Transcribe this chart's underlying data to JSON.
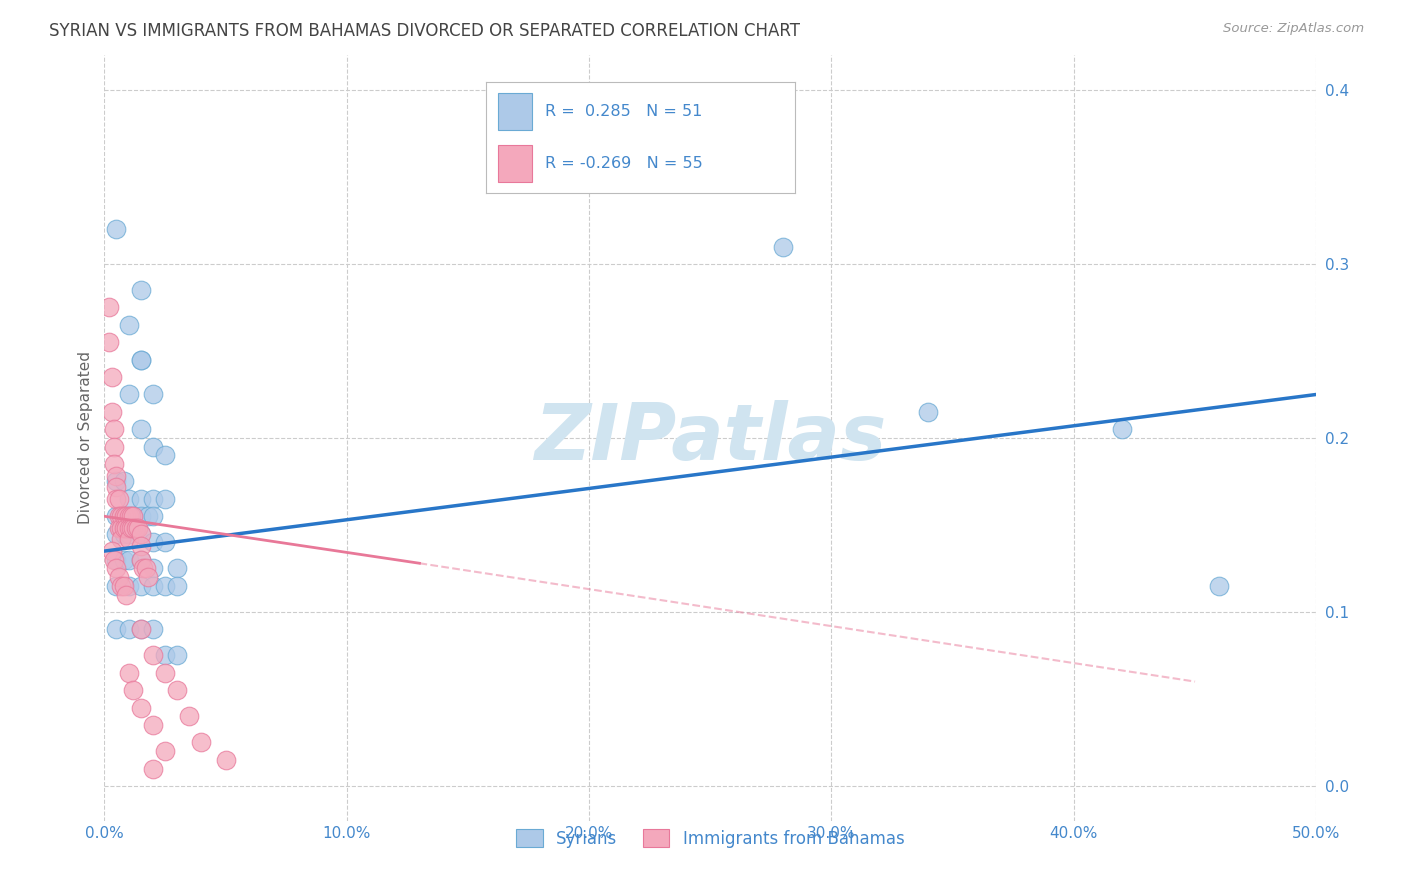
{
  "title": "SYRIAN VS IMMIGRANTS FROM BAHAMAS DIVORCED OR SEPARATED CORRELATION CHART",
  "source": "Source: ZipAtlas.com",
  "ylabel": "Divorced or Separated",
  "xlim": [
    0.0,
    0.5
  ],
  "ylim": [
    -0.02,
    0.42
  ],
  "yplot_min": 0.0,
  "yplot_max": 0.4,
  "xticks": [
    0.0,
    0.1,
    0.2,
    0.3,
    0.4,
    0.5
  ],
  "yticks": [
    0.0,
    0.1,
    0.2,
    0.3,
    0.4
  ],
  "xtick_labels": [
    "0.0%",
    "10.0%",
    "20.0%",
    "30.0%",
    "40.0%",
    "50.0%"
  ],
  "ytick_labels": [
    "",
    "10.0%",
    "20.0%",
    "30.0%",
    "40.0%"
  ],
  "legend_labels": [
    "Syrians",
    "Immigrants from Bahamas"
  ],
  "blue_R": "0.285",
  "blue_N": "51",
  "pink_R": "-0.269",
  "pink_N": "55",
  "blue_color": "#adc9e8",
  "pink_color": "#f4a8bc",
  "blue_edge_color": "#6aaad4",
  "pink_edge_color": "#e8789a",
  "blue_line_color": "#2876c8",
  "pink_line_color": "#e87898",
  "watermark": "ZIPatlas",
  "watermark_color": "#d0e4f0",
  "background_color": "#ffffff",
  "grid_color": "#cccccc",
  "title_color": "#444444",
  "axis_label_color": "#4488cc",
  "blue_scatter": [
    [
      0.005,
      0.32
    ],
    [
      0.015,
      0.285
    ],
    [
      0.01,
      0.265
    ],
    [
      0.015,
      0.245
    ],
    [
      0.015,
      0.245
    ],
    [
      0.01,
      0.225
    ],
    [
      0.02,
      0.225
    ],
    [
      0.015,
      0.205
    ],
    [
      0.02,
      0.195
    ],
    [
      0.025,
      0.19
    ],
    [
      0.005,
      0.175
    ],
    [
      0.008,
      0.175
    ],
    [
      0.01,
      0.165
    ],
    [
      0.015,
      0.165
    ],
    [
      0.02,
      0.165
    ],
    [
      0.025,
      0.165
    ],
    [
      0.005,
      0.155
    ],
    [
      0.008,
      0.155
    ],
    [
      0.01,
      0.155
    ],
    [
      0.012,
      0.155
    ],
    [
      0.015,
      0.155
    ],
    [
      0.018,
      0.155
    ],
    [
      0.02,
      0.155
    ],
    [
      0.005,
      0.145
    ],
    [
      0.008,
      0.145
    ],
    [
      0.01,
      0.145
    ],
    [
      0.015,
      0.145
    ],
    [
      0.02,
      0.14
    ],
    [
      0.025,
      0.14
    ],
    [
      0.005,
      0.13
    ],
    [
      0.008,
      0.13
    ],
    [
      0.01,
      0.13
    ],
    [
      0.015,
      0.13
    ],
    [
      0.02,
      0.125
    ],
    [
      0.03,
      0.125
    ],
    [
      0.005,
      0.115
    ],
    [
      0.01,
      0.115
    ],
    [
      0.015,
      0.115
    ],
    [
      0.02,
      0.115
    ],
    [
      0.025,
      0.115
    ],
    [
      0.03,
      0.115
    ],
    [
      0.005,
      0.09
    ],
    [
      0.01,
      0.09
    ],
    [
      0.015,
      0.09
    ],
    [
      0.02,
      0.09
    ],
    [
      0.025,
      0.075
    ],
    [
      0.03,
      0.075
    ],
    [
      0.28,
      0.31
    ],
    [
      0.34,
      0.215
    ],
    [
      0.42,
      0.205
    ],
    [
      0.46,
      0.115
    ]
  ],
  "pink_scatter": [
    [
      0.002,
      0.275
    ],
    [
      0.002,
      0.255
    ],
    [
      0.003,
      0.235
    ],
    [
      0.003,
      0.215
    ],
    [
      0.004,
      0.205
    ],
    [
      0.004,
      0.195
    ],
    [
      0.004,
      0.185
    ],
    [
      0.005,
      0.178
    ],
    [
      0.005,
      0.172
    ],
    [
      0.005,
      0.165
    ],
    [
      0.006,
      0.165
    ],
    [
      0.006,
      0.155
    ],
    [
      0.006,
      0.148
    ],
    [
      0.007,
      0.155
    ],
    [
      0.007,
      0.148
    ],
    [
      0.007,
      0.142
    ],
    [
      0.008,
      0.155
    ],
    [
      0.008,
      0.148
    ],
    [
      0.009,
      0.155
    ],
    [
      0.009,
      0.148
    ],
    [
      0.01,
      0.155
    ],
    [
      0.01,
      0.148
    ],
    [
      0.01,
      0.142
    ],
    [
      0.011,
      0.155
    ],
    [
      0.011,
      0.148
    ],
    [
      0.012,
      0.155
    ],
    [
      0.012,
      0.148
    ],
    [
      0.013,
      0.148
    ],
    [
      0.014,
      0.148
    ],
    [
      0.015,
      0.145
    ],
    [
      0.015,
      0.138
    ],
    [
      0.015,
      0.13
    ],
    [
      0.016,
      0.125
    ],
    [
      0.017,
      0.125
    ],
    [
      0.018,
      0.12
    ],
    [
      0.003,
      0.135
    ],
    [
      0.004,
      0.13
    ],
    [
      0.005,
      0.125
    ],
    [
      0.006,
      0.12
    ],
    [
      0.007,
      0.115
    ],
    [
      0.008,
      0.115
    ],
    [
      0.009,
      0.11
    ],
    [
      0.015,
      0.09
    ],
    [
      0.02,
      0.075
    ],
    [
      0.025,
      0.065
    ],
    [
      0.03,
      0.055
    ],
    [
      0.035,
      0.04
    ],
    [
      0.04,
      0.025
    ],
    [
      0.01,
      0.065
    ],
    [
      0.012,
      0.055
    ],
    [
      0.015,
      0.045
    ],
    [
      0.02,
      0.035
    ],
    [
      0.025,
      0.02
    ],
    [
      0.02,
      0.01
    ],
    [
      0.05,
      0.015
    ]
  ],
  "blue_trendline": [
    [
      0.0,
      0.135
    ],
    [
      0.5,
      0.225
    ]
  ],
  "pink_trendline_solid": [
    [
      0.0,
      0.155
    ],
    [
      0.13,
      0.128
    ]
  ],
  "pink_trendline_dashed": [
    [
      0.13,
      0.128
    ],
    [
      0.45,
      0.06
    ]
  ]
}
